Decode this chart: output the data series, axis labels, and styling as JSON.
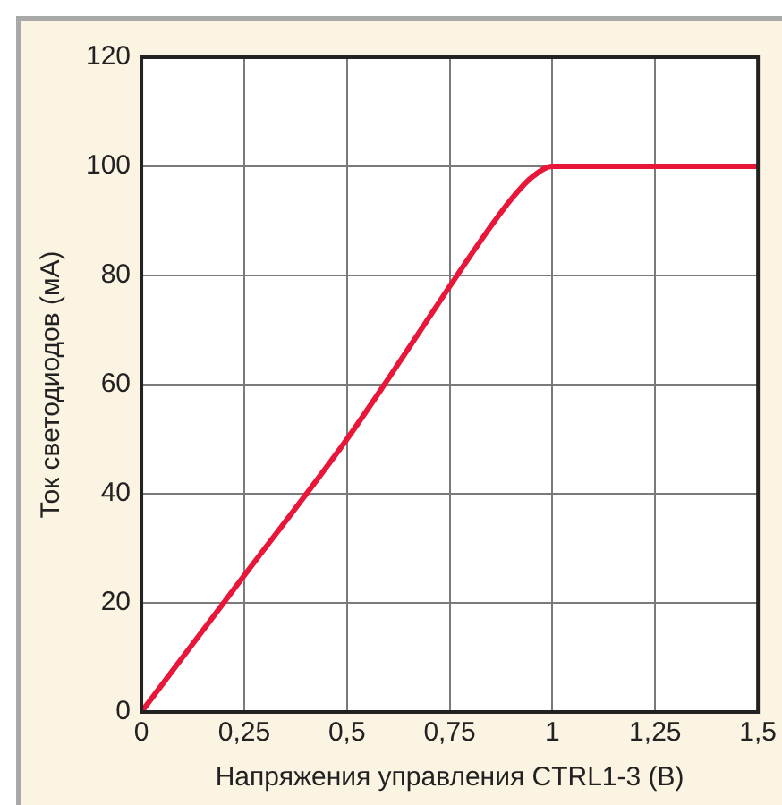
{
  "chart_data": {
    "type": "line",
    "xlabel": "Напряжения управления CTRL1-3 (В)",
    "ylabel": "Ток светодиодов (мА)",
    "x": [
      0,
      0.25,
      0.5,
      0.6,
      0.75,
      0.85,
      0.9,
      0.95,
      1,
      1.05,
      1.25,
      1.5
    ],
    "series": [
      {
        "color": "#e8173a",
        "values": [
          0,
          25,
          50,
          61,
          78,
          89,
          94,
          98,
          100,
          100,
          100,
          100
        ]
      }
    ],
    "xlim": [
      0,
      1.5
    ],
    "ylim": [
      0,
      120
    ],
    "xticks": [
      0,
      {
        "value": 0.25,
        "label": "0,25"
      },
      {
        "value": 0.5,
        "label": "0,5"
      },
      {
        "value": 0.75,
        "label": "0,75"
      },
      1,
      {
        "value": 1.25,
        "label": "1,25"
      },
      {
        "value": 1.5,
        "label": "1,5"
      }
    ],
    "yticks": [
      0,
      20,
      40,
      60,
      80,
      100,
      120
    ],
    "grid": true,
    "legend": false,
    "marker": "none",
    "line_style": "solid"
  }
}
